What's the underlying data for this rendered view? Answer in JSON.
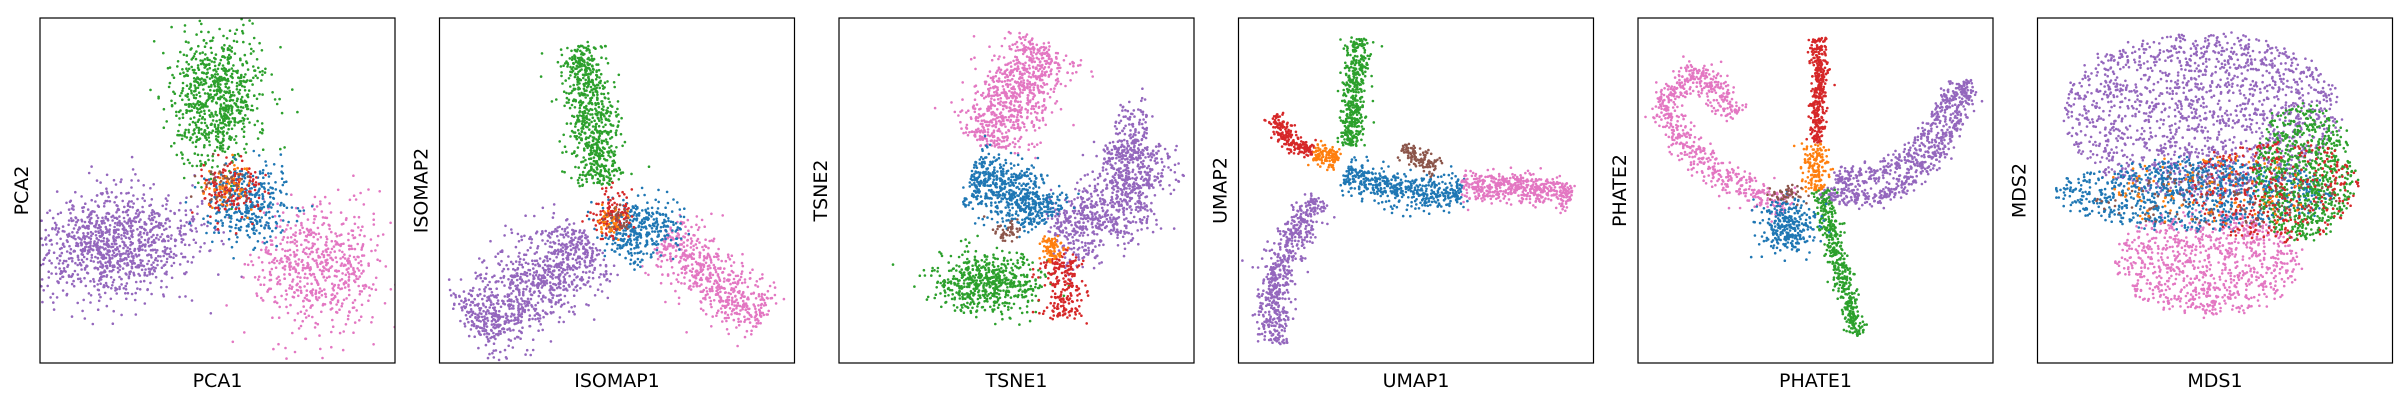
{
  "colors": {
    "purple": "#9467bd",
    "green": "#2ca02c",
    "blue": "#1f77b4",
    "red": "#d62728",
    "orange": "#ff7f0e",
    "brown": "#8c564b",
    "pink": "#e377c2"
  },
  "chart_data": [
    {
      "type": "scatter",
      "xlabel": "PCA1",
      "ylabel": "PCA2",
      "xlim": [
        0,
        10
      ],
      "ylim": [
        0,
        10
      ],
      "ticks": "none",
      "grid": false,
      "legend": "none",
      "clusters": [
        {
          "color": "purple",
          "shape": "blob",
          "cx": 2.0,
          "cy": 3.4,
          "sx": 1.2,
          "sy": 0.8,
          "rot": 10,
          "n": 1100
        },
        {
          "color": "green",
          "shape": "blob",
          "cx": 5.0,
          "cy": 7.7,
          "sx": 0.65,
          "sy": 1.0,
          "rot": 0,
          "n": 800
        },
        {
          "color": "pink",
          "shape": "blob",
          "cx": 7.8,
          "cy": 2.8,
          "sx": 0.9,
          "sy": 0.9,
          "rot": -30,
          "n": 650
        },
        {
          "color": "blue",
          "shape": "blob",
          "cx": 5.9,
          "cy": 4.6,
          "sx": 0.6,
          "sy": 0.55,
          "rot": 0,
          "n": 350
        },
        {
          "color": "red",
          "shape": "blob",
          "cx": 5.4,
          "cy": 5.0,
          "sx": 0.45,
          "sy": 0.45,
          "rot": 0,
          "n": 150
        },
        {
          "color": "orange",
          "shape": "blob",
          "cx": 5.3,
          "cy": 5.2,
          "sx": 0.35,
          "sy": 0.35,
          "rot": 0,
          "n": 60
        },
        {
          "color": "brown",
          "shape": "blob",
          "cx": 5.2,
          "cy": 5.1,
          "sx": 0.35,
          "sy": 0.35,
          "rot": 0,
          "n": 40
        }
      ]
    },
    {
      "type": "scatter",
      "xlabel": "ISOMAP1",
      "ylabel": "ISOMAP2",
      "xlim": [
        0,
        10
      ],
      "ylim": [
        0,
        10
      ],
      "ticks": "none",
      "grid": false,
      "legend": "none",
      "clusters": [
        {
          "color": "purple",
          "shape": "path",
          "pts": [
            [
              0.9,
              1.0
            ],
            [
              2.5,
              2.0
            ],
            [
              4.2,
              3.6
            ]
          ],
          "w": 0.6,
          "n": 1000
        },
        {
          "color": "green",
          "shape": "path",
          "pts": [
            [
              4.0,
              9.2
            ],
            [
              4.2,
              7.5
            ],
            [
              4.6,
              5.2
            ]
          ],
          "w": 0.35,
          "n": 700
        },
        {
          "color": "pink",
          "shape": "path",
          "pts": [
            [
              6.3,
              3.6
            ],
            [
              7.8,
              2.4
            ],
            [
              9.1,
              1.3
            ]
          ],
          "w": 0.45,
          "n": 600
        },
        {
          "color": "blue",
          "shape": "blob",
          "cx": 5.7,
          "cy": 3.9,
          "sx": 0.55,
          "sy": 0.45,
          "rot": 0,
          "n": 350
        },
        {
          "color": "red",
          "shape": "blob",
          "cx": 4.9,
          "cy": 4.3,
          "sx": 0.3,
          "sy": 0.35,
          "rot": 0,
          "n": 120
        },
        {
          "color": "orange",
          "shape": "blob",
          "cx": 4.9,
          "cy": 4.1,
          "sx": 0.2,
          "sy": 0.25,
          "rot": 0,
          "n": 50
        },
        {
          "color": "brown",
          "shape": "blob",
          "cx": 5.0,
          "cy": 4.2,
          "sx": 0.2,
          "sy": 0.2,
          "rot": 0,
          "n": 30
        }
      ]
    },
    {
      "type": "scatter",
      "xlabel": "TSNE1",
      "ylabel": "TSNE2",
      "xlim": [
        0,
        10
      ],
      "ylim": [
        0,
        10
      ],
      "ticks": "none",
      "grid": false,
      "legend": "none",
      "clusters": [
        {
          "color": "pink",
          "shape": "path",
          "pts": [
            [
              5.8,
              9.2
            ],
            [
              5.3,
              8.2
            ],
            [
              4.5,
              7.2
            ],
            [
              4.1,
              6.4
            ]
          ],
          "w": 0.55,
          "n": 800
        },
        {
          "color": "purple",
          "shape": "path",
          "pts": [
            [
              6.0,
              3.8
            ],
            [
              7.3,
              4.0
            ],
            [
              8.4,
              5.0
            ],
            [
              8.5,
              6.3
            ],
            [
              7.7,
              6.6
            ]
          ],
          "w": 0.55,
          "n": 1000
        },
        {
          "color": "blue",
          "shape": "path",
          "pts": [
            [
              3.7,
              5.4
            ],
            [
              4.6,
              5.1
            ],
            [
              5.6,
              4.7
            ],
            [
              5.9,
              4.2
            ]
          ],
          "w": 0.45,
          "n": 650
        },
        {
          "color": "green",
          "shape": "blob",
          "cx": 4.2,
          "cy": 2.3,
          "sx": 0.75,
          "sy": 0.45,
          "rot": 0,
          "n": 600
        },
        {
          "color": "red",
          "shape": "path",
          "pts": [
            [
              6.0,
              3.1
            ],
            [
              6.4,
              2.4
            ],
            [
              6.2,
              1.3
            ]
          ],
          "w": 0.3,
          "n": 220
        },
        {
          "color": "orange",
          "shape": "path",
          "pts": [
            [
              5.8,
              3.6
            ],
            [
              6.1,
              3.0
            ]
          ],
          "w": 0.18,
          "n": 80
        },
        {
          "color": "brown",
          "shape": "blob",
          "cx": 4.8,
          "cy": 3.8,
          "sx": 0.25,
          "sy": 0.15,
          "rot": 0,
          "n": 45
        }
      ]
    },
    {
      "type": "scatter",
      "xlabel": "UMAP1",
      "ylabel": "UMAP2",
      "xlim": [
        0,
        10
      ],
      "ylim": [
        0,
        10
      ],
      "ticks": "none",
      "grid": false,
      "legend": "none",
      "clusters": [
        {
          "color": "purple",
          "shape": "path",
          "pts": [
            [
              1.0,
              0.6
            ],
            [
              1.0,
              2.2
            ],
            [
              1.5,
              3.8
            ],
            [
              2.3,
              4.7
            ]
          ],
          "w": 0.25,
          "n": 600
        },
        {
          "color": "green",
          "shape": "path",
          "pts": [
            [
              3.4,
              9.4
            ],
            [
              3.3,
              8.0
            ],
            [
              3.1,
              6.3
            ]
          ],
          "w": 0.18,
          "n": 450
        },
        {
          "color": "blue",
          "shape": "path",
          "pts": [
            [
              3.0,
              5.5
            ],
            [
              4.2,
              5.1
            ],
            [
              5.5,
              4.9
            ],
            [
              6.3,
              5.0
            ]
          ],
          "w": 0.25,
          "n": 500
        },
        {
          "color": "pink",
          "shape": "path",
          "pts": [
            [
              6.3,
              5.1
            ],
            [
              7.8,
              5.1
            ],
            [
              9.4,
              4.9
            ]
          ],
          "w": 0.22,
          "n": 500
        },
        {
          "color": "red",
          "shape": "path",
          "pts": [
            [
              1.0,
              7.2
            ],
            [
              1.3,
              6.5
            ],
            [
              2.1,
              6.1
            ]
          ],
          "w": 0.14,
          "n": 200
        },
        {
          "color": "orange",
          "shape": "path",
          "pts": [
            [
              2.1,
              6.1
            ],
            [
              2.8,
              5.9
            ]
          ],
          "w": 0.15,
          "n": 120
        },
        {
          "color": "brown",
          "shape": "path",
          "pts": [
            [
              4.6,
              6.2
            ],
            [
              5.0,
              6.0
            ],
            [
              5.6,
              5.6
            ]
          ],
          "w": 0.14,
          "n": 120
        }
      ]
    },
    {
      "type": "scatter",
      "xlabel": "PHATE1",
      "ylabel": "PHATE2",
      "xlim": [
        0,
        10
      ],
      "ylim": [
        0,
        10
      ],
      "ticks": "none",
      "grid": false,
      "legend": "none",
      "clusters": [
        {
          "color": "pink",
          "shape": "path",
          "pts": [
            [
              2.8,
              7.2
            ],
            [
              1.7,
              8.5
            ],
            [
              0.6,
              7.5
            ],
            [
              1.6,
              6.0
            ],
            [
              3.0,
              5.0
            ],
            [
              4.3,
              4.6
            ]
          ],
          "w": 0.22,
          "n": 700
        },
        {
          "color": "purple",
          "shape": "path",
          "pts": [
            [
              5.1,
              4.9
            ],
            [
              7.0,
              4.8
            ],
            [
              8.3,
              5.9
            ],
            [
              9.4,
              8.0
            ],
            [
              8.8,
              7.9
            ],
            [
              7.8,
              6.1
            ],
            [
              6.8,
              5.5
            ],
            [
              5.6,
              5.3
            ]
          ],
          "w": 0.16,
          "n": 800
        },
        {
          "color": "red",
          "shape": "path",
          "pts": [
            [
              5.1,
              9.4
            ],
            [
              5.1,
              7.5
            ],
            [
              5.0,
              6.4
            ]
          ],
          "w": 0.12,
          "n": 350
        },
        {
          "color": "orange",
          "shape": "path",
          "pts": [
            [
              5.0,
              6.4
            ],
            [
              5.0,
              5.0
            ]
          ],
          "w": 0.18,
          "n": 160
        },
        {
          "color": "green",
          "shape": "path",
          "pts": [
            [
              5.2,
              5.0
            ],
            [
              5.6,
              3.0
            ],
            [
              6.2,
              0.8
            ]
          ],
          "w": 0.15,
          "n": 450
        },
        {
          "color": "blue",
          "shape": "blob",
          "cx": 4.2,
          "cy": 4.0,
          "sx": 0.4,
          "sy": 0.4,
          "rot": 0,
          "n": 300
        },
        {
          "color": "brown",
          "shape": "blob",
          "cx": 4.2,
          "cy": 4.9,
          "sx": 0.25,
          "sy": 0.12,
          "rot": 0,
          "n": 45
        }
      ]
    },
    {
      "type": "scatter",
      "xlabel": "MDS1",
      "ylabel": "MDS2",
      "xlim": [
        0,
        10
      ],
      "ylim": [
        0,
        10
      ],
      "ticks": "none",
      "grid": false,
      "legend": "none",
      "clusters": [
        {
          "color": "purple",
          "shape": "disc",
          "cx": 4.6,
          "cy": 7.2,
          "rx": 3.9,
          "ry": 2.4,
          "n": 1700
        },
        {
          "color": "pink",
          "shape": "disc",
          "cx": 4.8,
          "cy": 2.9,
          "rx": 2.6,
          "ry": 1.5,
          "n": 900
        },
        {
          "color": "blue",
          "shape": "disc",
          "cx": 4.4,
          "cy": 4.9,
          "rx": 3.9,
          "ry": 1.0,
          "n": 900
        },
        {
          "color": "green",
          "shape": "disc",
          "cx": 7.5,
          "cy": 5.5,
          "rx": 1.4,
          "ry": 1.9,
          "n": 750
        },
        {
          "color": "red",
          "shape": "disc",
          "cx": 6.7,
          "cy": 5.0,
          "rx": 2.4,
          "ry": 1.5,
          "n": 350
        },
        {
          "color": "brown",
          "shape": "disc",
          "cx": 5.0,
          "cy": 4.8,
          "rx": 3.5,
          "ry": 0.8,
          "n": 120
        },
        {
          "color": "orange",
          "shape": "disc",
          "cx": 5.0,
          "cy": 5.0,
          "rx": 3.0,
          "ry": 1.0,
          "n": 100
        }
      ]
    }
  ]
}
